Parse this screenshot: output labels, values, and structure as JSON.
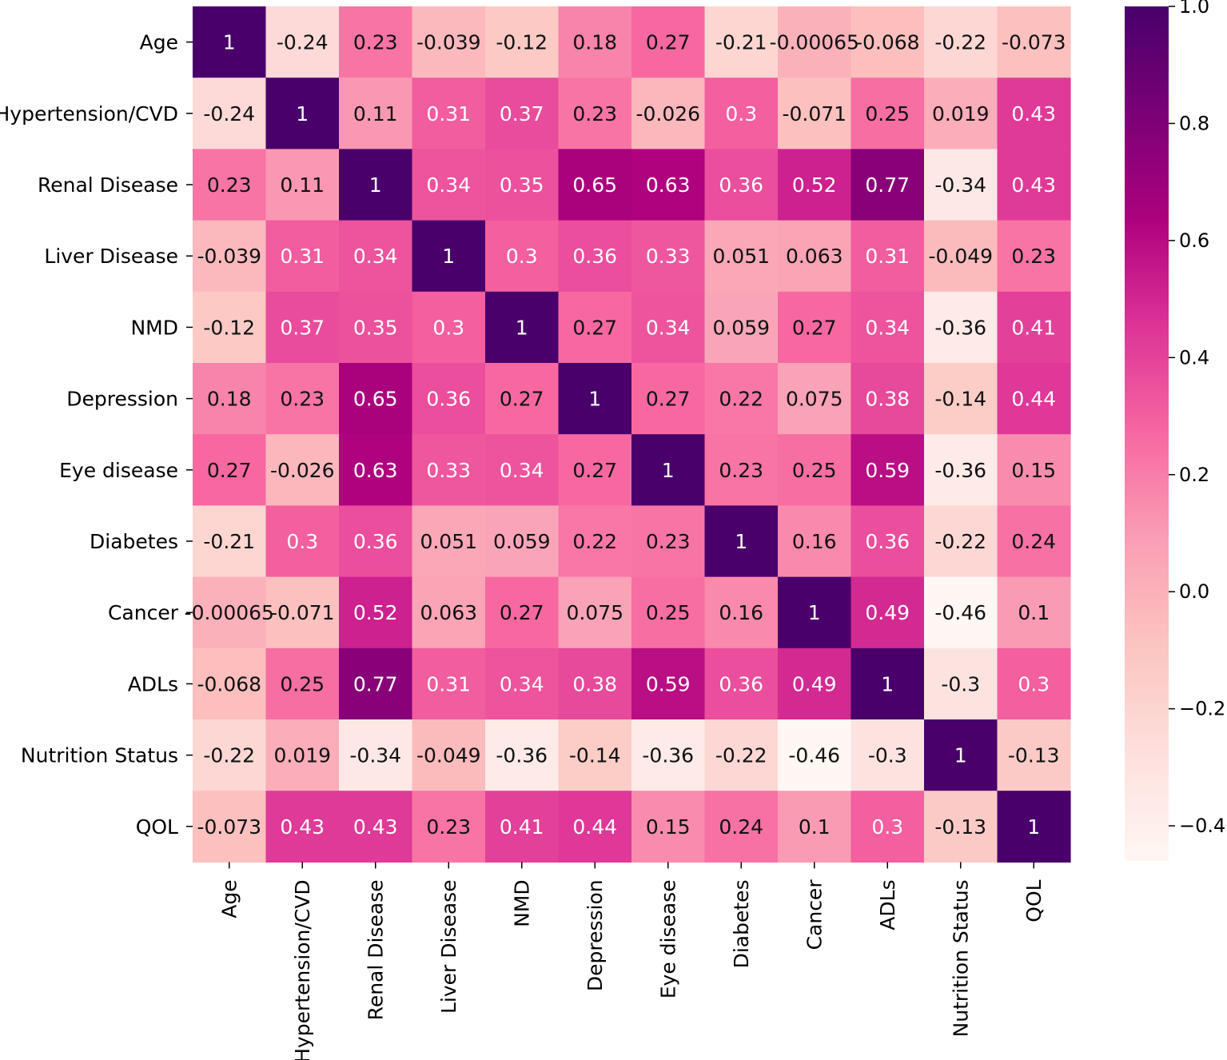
{
  "chart_data": {
    "type": "heatmap",
    "title": "",
    "xlabel": "",
    "ylabel": "",
    "x_labels": [
      "Age",
      "Hypertension/CVD",
      "Renal Disease",
      "Liver Disease",
      "NMD",
      "Depression",
      "Eye disease",
      "Diabetes",
      "Cancer",
      "ADLs",
      "Nutrition Status",
      "QOL"
    ],
    "y_labels": [
      "Age",
      "Hypertension/CVD",
      "Renal Disease",
      "Liver Disease",
      "NMD",
      "Depression",
      "Eye disease",
      "Diabetes",
      "Cancer",
      "ADLs",
      "Nutrition Status",
      "QOL"
    ],
    "values": [
      [
        1,
        -0.24,
        0.23,
        -0.039,
        -0.12,
        0.18,
        0.27,
        -0.21,
        -0.00065,
        -0.068,
        -0.22,
        -0.073
      ],
      [
        -0.24,
        1,
        0.11,
        0.31,
        0.37,
        0.23,
        -0.026,
        0.3,
        -0.071,
        0.25,
        0.019,
        0.43
      ],
      [
        0.23,
        0.11,
        1,
        0.34,
        0.35,
        0.65,
        0.63,
        0.36,
        0.52,
        0.77,
        -0.34,
        0.43
      ],
      [
        -0.039,
        0.31,
        0.34,
        1,
        0.3,
        0.36,
        0.33,
        0.051,
        0.063,
        0.31,
        -0.049,
        0.23
      ],
      [
        -0.12,
        0.37,
        0.35,
        0.3,
        1,
        0.27,
        0.34,
        0.059,
        0.27,
        0.34,
        -0.36,
        0.41
      ],
      [
        0.18,
        0.23,
        0.65,
        0.36,
        0.27,
        1,
        0.27,
        0.22,
        0.075,
        0.38,
        -0.14,
        0.44
      ],
      [
        0.27,
        -0.026,
        0.63,
        0.33,
        0.34,
        0.27,
        1,
        0.23,
        0.25,
        0.59,
        -0.36,
        0.15
      ],
      [
        -0.21,
        0.3,
        0.36,
        0.051,
        0.059,
        0.22,
        0.23,
        1,
        0.16,
        0.36,
        -0.22,
        0.24
      ],
      [
        -0.00065,
        -0.071,
        0.52,
        0.063,
        0.27,
        0.075,
        0.25,
        0.16,
        1,
        0.49,
        -0.46,
        0.1
      ],
      [
        -0.068,
        0.25,
        0.77,
        0.31,
        0.34,
        0.38,
        0.59,
        0.36,
        0.49,
        1,
        -0.3,
        0.3
      ],
      [
        -0.22,
        0.019,
        -0.34,
        -0.049,
        -0.36,
        -0.14,
        -0.36,
        -0.22,
        -0.46,
        -0.3,
        1,
        -0.13
      ],
      [
        -0.073,
        0.43,
        0.43,
        0.23,
        0.41,
        0.44,
        0.15,
        0.24,
        0.1,
        0.3,
        -0.13,
        1
      ]
    ],
    "cell_labels": [
      [
        "1",
        "-0.24",
        "0.23",
        "-0.039",
        "-0.12",
        "0.18",
        "0.27",
        "-0.21",
        "-0.00065",
        "-0.068",
        "-0.22",
        "-0.073"
      ],
      [
        "-0.24",
        "1",
        "0.11",
        "0.31",
        "0.37",
        "0.23",
        "-0.026",
        "0.3",
        "-0.071",
        "0.25",
        "0.019",
        "0.43"
      ],
      [
        "0.23",
        "0.11",
        "1",
        "0.34",
        "0.35",
        "0.65",
        "0.63",
        "0.36",
        "0.52",
        "0.77",
        "-0.34",
        "0.43"
      ],
      [
        "-0.039",
        "0.31",
        "0.34",
        "1",
        "0.3",
        "0.36",
        "0.33",
        "0.051",
        "0.063",
        "0.31",
        "-0.049",
        "0.23"
      ],
      [
        "-0.12",
        "0.37",
        "0.35",
        "0.3",
        "1",
        "0.27",
        "0.34",
        "0.059",
        "0.27",
        "0.34",
        "-0.36",
        "0.41"
      ],
      [
        "0.18",
        "0.23",
        "0.65",
        "0.36",
        "0.27",
        "1",
        "0.27",
        "0.22",
        "0.075",
        "0.38",
        "-0.14",
        "0.44"
      ],
      [
        "0.27",
        "-0.026",
        "0.63",
        "0.33",
        "0.34",
        "0.27",
        "1",
        "0.23",
        "0.25",
        "0.59",
        "-0.36",
        "0.15"
      ],
      [
        "-0.21",
        "0.3",
        "0.36",
        "0.051",
        "0.059",
        "0.22",
        "0.23",
        "1",
        "0.16",
        "0.36",
        "-0.22",
        "0.24"
      ],
      [
        "-0.00065",
        "-0.071",
        "0.52",
        "0.063",
        "0.27",
        "0.075",
        "0.25",
        "0.16",
        "1",
        "0.49",
        "-0.46",
        "0.1"
      ],
      [
        "-0.068",
        "0.25",
        "0.77",
        "0.31",
        "0.34",
        "0.38",
        "0.59",
        "0.36",
        "0.49",
        "1",
        "-0.3",
        "0.3"
      ],
      [
        "-0.22",
        "0.019",
        "-0.34",
        "-0.049",
        "-0.36",
        "-0.14",
        "-0.36",
        "-0.22",
        "-0.46",
        "-0.3",
        "1",
        "-0.13"
      ],
      [
        "-0.073",
        "0.43",
        "0.43",
        "0.23",
        "0.41",
        "0.44",
        "0.15",
        "0.24",
        "0.1",
        "0.3",
        "-0.13",
        "1"
      ]
    ],
    "colorbar": {
      "vmin": -0.46,
      "vmax": 1.0,
      "ticks": [
        1.0,
        0.8,
        0.6,
        0.4,
        0.2,
        0.0,
        -0.2,
        -0.4
      ],
      "tick_labels": [
        "1.0",
        "0.8",
        "0.6",
        "0.4",
        "0.2",
        "0.0",
        "−0.2",
        "−0.4"
      ]
    },
    "colormap": "RdPu",
    "colormap_stops": [
      "#fff7f3",
      "#fde0dd",
      "#fcc5c0",
      "#fa9fb5",
      "#f768a1",
      "#dd3497",
      "#ae017e",
      "#7a0177",
      "#49006a"
    ],
    "grid": false,
    "legend": "colorbar-right"
  }
}
